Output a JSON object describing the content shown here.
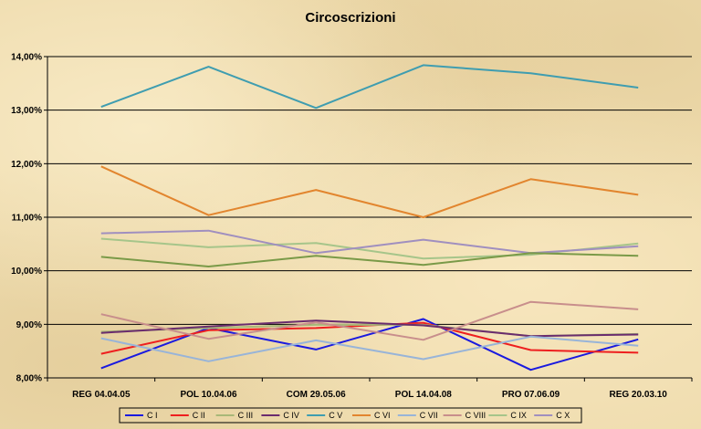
{
  "chart_data": {
    "type": "line",
    "title": "Circoscrizioni",
    "xlabel": "",
    "ylabel": "",
    "categories": [
      "REG 04.04.05",
      "POL 10.04.06",
      "COM 29.05.06",
      "POL 14.04.08",
      "PRO 07.06.09",
      "REG 20.03.10"
    ],
    "y_ticks": [
      "8,00%",
      "9,00%",
      "10,00%",
      "11,00%",
      "12,00%",
      "13,00%",
      "14,00%"
    ],
    "ylim": [
      8.0,
      14.0
    ],
    "grid": true,
    "legend_position": "bottom",
    "series": [
      {
        "name": "C I",
        "color": "#1a1adf",
        "values": [
          8.18,
          8.93,
          8.53,
          9.1,
          8.15,
          8.72
        ]
      },
      {
        "name": "C II",
        "color": "#ee1f1f",
        "values": [
          8.45,
          8.89,
          8.93,
          9.03,
          8.52,
          8.47
        ]
      },
      {
        "name": "C III",
        "color": "#a8b878",
        "values": [
          8.86,
          8.93,
          8.99,
          8.99,
          8.78,
          8.82
        ]
      },
      {
        "name": "C IV",
        "color": "#6a2c6e",
        "values": [
          8.84,
          8.96,
          9.07,
          8.98,
          8.78,
          8.81
        ]
      },
      {
        "name": "C V",
        "color": "#3f9db0",
        "values": [
          13.06,
          13.81,
          13.04,
          13.84,
          13.69,
          13.42
        ]
      },
      {
        "name": "C VI",
        "color": "#e2852e",
        "values": [
          11.95,
          11.04,
          11.51,
          11.0,
          11.71,
          11.42
        ]
      },
      {
        "name": "C VII",
        "color": "#98b4d8",
        "values": [
          8.74,
          8.31,
          8.7,
          8.35,
          8.77,
          8.6
        ]
      },
      {
        "name": "C VIII",
        "color": "#c88e8c",
        "values": [
          9.19,
          8.73,
          9.04,
          8.71,
          9.42,
          9.28
        ]
      },
      {
        "name": "C IX",
        "color": "#a6c58a",
        "values": [
          10.6,
          10.44,
          10.52,
          10.23,
          10.3,
          10.51
        ]
      },
      {
        "name": "C X",
        "color": "#a08fbf",
        "values": [
          10.7,
          10.75,
          10.33,
          10.58,
          10.33,
          10.46
        ]
      },
      {
        "name": "",
        "color": "#7a9a48",
        "values": [
          10.26,
          10.08,
          10.28,
          10.11,
          10.33,
          10.28
        ]
      }
    ]
  }
}
